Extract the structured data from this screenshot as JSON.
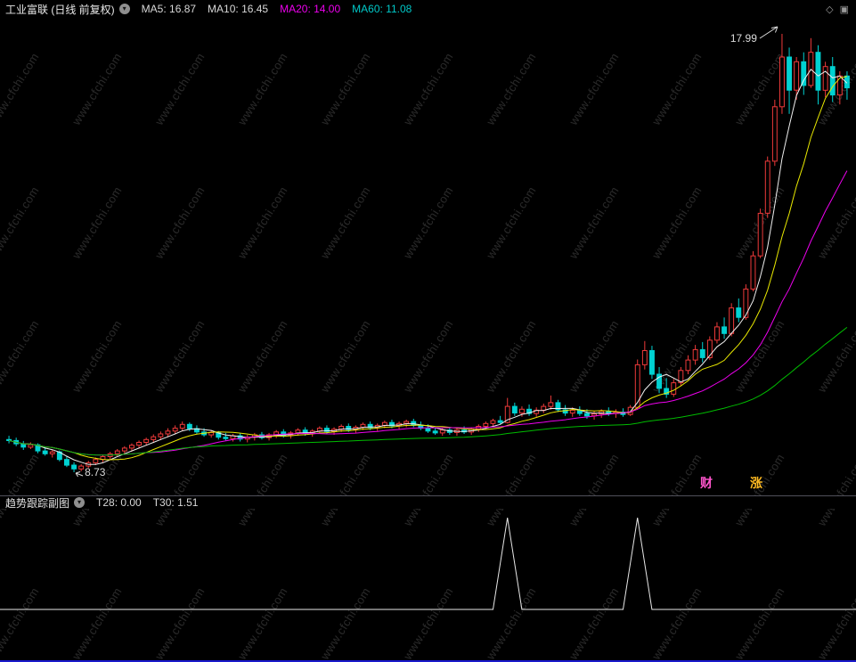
{
  "header": {
    "title": "工业富联 (日线 前复权)",
    "ma_values": [
      {
        "label": "MA5: 16.87",
        "color": "#d8d8d8"
      },
      {
        "label": "MA10: 16.45",
        "color": "#d8d8d8"
      },
      {
        "label": "MA20: 14.00",
        "color": "#ee00ee"
      },
      {
        "label": "MA60: 11.08",
        "color": "#00c8c8"
      }
    ]
  },
  "icons": {
    "collapse_glyph": "▾",
    "diamond_glyph": "◇",
    "panel_glyph": "▣"
  },
  "subpanel": {
    "title": "趋势跟踪副图",
    "values": [
      {
        "label": "T28: 0.00",
        "color": "#d8d8d8"
      },
      {
        "label": "T30: 1.51",
        "color": "#d8d8d8"
      }
    ]
  },
  "overlays": {
    "high_label": "17.99",
    "low_label": "8.73",
    "corner_texts": [
      {
        "text": "财",
        "color": "#ff55cc"
      },
      {
        "text": "涨",
        "color": "#ffbb22"
      }
    ]
  },
  "watermark": {
    "text": "www.cfchi.com",
    "color": "rgba(255,255,255,0.16)"
  },
  "colors": {
    "background": "#000000",
    "up": "#ee3a3a",
    "down": "#00d2d2"
  },
  "chart_data": [
    {
      "type": "candlestick",
      "title": "工业富联 日线 前复权",
      "ylim": [
        8.73,
        17.99
      ],
      "annotations": {
        "high": 17.99,
        "low": 8.73
      },
      "up_color": "#ee3a3a",
      "down_color": "#00d2d2",
      "ma_series": [
        {
          "name": "MA5",
          "period": 5,
          "color": "#f0f0f0",
          "last": 16.87
        },
        {
          "name": "MA10",
          "period": 10,
          "color": "#e8e800",
          "last": 16.45
        },
        {
          "name": "MA20",
          "period": 20,
          "color": "#ee00ee",
          "last": 14.0
        },
        {
          "name": "MA60",
          "period": 60,
          "color": "#00bb00",
          "last": 11.08
        }
      ],
      "candles": [
        [
          9.42,
          9.5,
          9.34,
          9.4
        ],
        [
          9.4,
          9.46,
          9.28,
          9.33
        ],
        [
          9.33,
          9.39,
          9.2,
          9.26
        ],
        [
          9.26,
          9.36,
          9.22,
          9.31
        ],
        [
          9.31,
          9.34,
          9.13,
          9.18
        ],
        [
          9.18,
          9.26,
          9.08,
          9.12
        ],
        [
          9.12,
          9.21,
          9.04,
          9.16
        ],
        [
          9.16,
          9.19,
          8.96,
          9.0
        ],
        [
          9.0,
          9.06,
          8.84,
          8.88
        ],
        [
          8.88,
          8.94,
          8.73,
          8.8
        ],
        [
          8.8,
          8.9,
          8.75,
          8.86
        ],
        [
          8.86,
          8.97,
          8.82,
          8.93
        ],
        [
          8.93,
          9.04,
          8.88,
          9.0
        ],
        [
          9.0,
          9.1,
          8.94,
          9.06
        ],
        [
          9.06,
          9.16,
          9.0,
          9.12
        ],
        [
          9.12,
          9.22,
          9.06,
          9.18
        ],
        [
          9.18,
          9.28,
          9.12,
          9.24
        ],
        [
          9.24,
          9.34,
          9.17,
          9.3
        ],
        [
          9.3,
          9.4,
          9.23,
          9.36
        ],
        [
          9.36,
          9.46,
          9.29,
          9.42
        ],
        [
          9.42,
          9.53,
          9.35,
          9.48
        ],
        [
          9.48,
          9.59,
          9.41,
          9.54
        ],
        [
          9.54,
          9.66,
          9.47,
          9.6
        ],
        [
          9.6,
          9.72,
          9.53,
          9.66
        ],
        [
          9.66,
          9.8,
          9.6,
          9.74
        ],
        [
          9.74,
          9.78,
          9.6,
          9.65
        ],
        [
          9.65,
          9.72,
          9.54,
          9.58
        ],
        [
          9.58,
          9.66,
          9.48,
          9.52
        ],
        [
          9.52,
          9.62,
          9.46,
          9.57
        ],
        [
          9.57,
          9.6,
          9.42,
          9.47
        ],
        [
          9.47,
          9.56,
          9.4,
          9.44
        ],
        [
          9.44,
          9.54,
          9.38,
          9.5
        ],
        [
          9.5,
          9.56,
          9.38,
          9.43
        ],
        [
          9.43,
          9.52,
          9.36,
          9.47
        ],
        [
          9.47,
          9.56,
          9.4,
          9.52
        ],
        [
          9.52,
          9.58,
          9.42,
          9.46
        ],
        [
          9.46,
          9.56,
          9.4,
          9.52
        ],
        [
          9.52,
          9.62,
          9.45,
          9.58
        ],
        [
          9.58,
          9.64,
          9.46,
          9.51
        ],
        [
          9.51,
          9.6,
          9.44,
          9.56
        ],
        [
          9.56,
          9.66,
          9.5,
          9.62
        ],
        [
          9.62,
          9.68,
          9.5,
          9.55
        ],
        [
          9.55,
          9.64,
          9.48,
          9.6
        ],
        [
          9.6,
          9.7,
          9.54,
          9.66
        ],
        [
          9.66,
          9.72,
          9.54,
          9.59
        ],
        [
          9.59,
          9.68,
          9.52,
          9.64
        ],
        [
          9.64,
          9.74,
          9.58,
          9.7
        ],
        [
          9.7,
          9.76,
          9.58,
          9.63
        ],
        [
          9.63,
          9.72,
          9.56,
          9.68
        ],
        [
          9.68,
          9.78,
          9.62,
          9.74
        ],
        [
          9.74,
          9.8,
          9.62,
          9.67
        ],
        [
          9.67,
          9.76,
          9.6,
          9.72
        ],
        [
          9.72,
          9.82,
          9.66,
          9.78
        ],
        [
          9.78,
          9.84,
          9.66,
          9.71
        ],
        [
          9.71,
          9.8,
          9.64,
          9.76
        ],
        [
          9.76,
          9.84,
          9.68,
          9.8
        ],
        [
          9.8,
          9.86,
          9.68,
          9.72
        ],
        [
          9.72,
          9.8,
          9.62,
          9.66
        ],
        [
          9.66,
          9.74,
          9.56,
          9.6
        ],
        [
          9.6,
          9.68,
          9.52,
          9.56
        ],
        [
          9.56,
          9.66,
          9.5,
          9.62
        ],
        [
          9.62,
          9.68,
          9.52,
          9.57
        ],
        [
          9.57,
          9.66,
          9.5,
          9.62
        ],
        [
          9.62,
          9.7,
          9.54,
          9.58
        ],
        [
          9.58,
          9.68,
          9.52,
          9.64
        ],
        [
          9.64,
          9.74,
          9.58,
          9.7
        ],
        [
          9.7,
          9.8,
          9.64,
          9.76
        ],
        [
          9.76,
          9.86,
          9.7,
          9.82
        ],
        [
          9.82,
          9.92,
          9.74,
          9.78
        ],
        [
          9.78,
          10.3,
          9.76,
          10.12
        ],
        [
          10.12,
          10.2,
          9.92,
          9.98
        ],
        [
          9.98,
          10.12,
          9.9,
          10.06
        ],
        [
          10.06,
          10.16,
          9.92,
          9.97
        ],
        [
          9.97,
          10.1,
          9.9,
          10.04
        ],
        [
          10.04,
          10.18,
          9.98,
          10.12
        ],
        [
          10.12,
          10.35,
          10.05,
          10.2
        ],
        [
          10.2,
          10.26,
          10.0,
          10.05
        ],
        [
          10.05,
          10.15,
          9.92,
          9.98
        ],
        [
          9.98,
          10.1,
          9.9,
          10.04
        ],
        [
          10.04,
          10.12,
          9.92,
          9.97
        ],
        [
          9.97,
          10.06,
          9.86,
          9.92
        ],
        [
          9.92,
          10.02,
          9.84,
          9.96
        ],
        [
          9.96,
          10.06,
          9.88,
          10.02
        ],
        [
          10.02,
          10.1,
          9.92,
          9.97
        ],
        [
          9.97,
          10.06,
          9.88,
          10.0
        ],
        [
          10.0,
          10.08,
          9.9,
          9.95
        ],
        [
          9.95,
          10.15,
          9.92,
          10.1
        ],
        [
          10.1,
          11.11,
          10.06,
          11.0
        ],
        [
          11.0,
          11.5,
          10.9,
          11.3
        ],
        [
          11.3,
          11.4,
          10.7,
          10.8
        ],
        [
          10.8,
          10.95,
          10.4,
          10.5
        ],
        [
          10.5,
          10.72,
          10.3,
          10.38
        ],
        [
          10.38,
          10.7,
          10.32,
          10.62
        ],
        [
          10.62,
          10.95,
          10.55,
          10.88
        ],
        [
          10.88,
          11.2,
          10.8,
          11.1
        ],
        [
          11.1,
          11.42,
          11.0,
          11.32
        ],
        [
          11.32,
          11.48,
          11.05,
          11.15
        ],
        [
          11.15,
          11.6,
          11.1,
          11.52
        ],
        [
          11.52,
          11.9,
          11.45,
          11.8
        ],
        [
          11.8,
          12.0,
          11.55,
          11.66
        ],
        [
          11.66,
          12.3,
          11.6,
          12.2
        ],
        [
          12.2,
          12.4,
          11.9,
          12.0
        ],
        [
          12.0,
          12.7,
          11.95,
          12.6
        ],
        [
          12.6,
          13.4,
          12.55,
          13.3
        ],
        [
          13.3,
          14.3,
          13.25,
          14.2
        ],
        [
          14.2,
          15.4,
          14.1,
          15.3
        ],
        [
          15.3,
          16.6,
          15.2,
          16.45
        ],
        [
          16.45,
          17.99,
          16.3,
          17.5
        ],
        [
          17.5,
          17.7,
          16.3,
          16.8
        ],
        [
          16.8,
          17.5,
          16.6,
          17.4
        ],
        [
          17.4,
          17.6,
          16.7,
          16.9
        ],
        [
          16.9,
          17.9,
          16.85,
          17.6
        ],
        [
          17.6,
          17.75,
          16.5,
          16.8
        ],
        [
          16.8,
          17.4,
          16.65,
          17.3
        ],
        [
          17.3,
          17.5,
          16.55,
          16.7
        ],
        [
          16.7,
          17.2,
          16.5,
          17.1
        ],
        [
          17.1,
          17.2,
          16.6,
          16.85
        ]
      ]
    },
    {
      "type": "line",
      "title": "趋势跟踪副图",
      "indicators": [
        {
          "name": "T28",
          "value": 0
        },
        {
          "name": "T30",
          "value": 1.51
        }
      ],
      "ylim": [
        0,
        1.6
      ],
      "baseline_value": 0,
      "series": [
        {
          "name": "trend-signal",
          "color": "#e8e8e8",
          "spikes": [
            {
              "day": 69,
              "peak": 1.51
            },
            {
              "day": 87,
              "peak": 1.51
            }
          ]
        }
      ]
    }
  ]
}
